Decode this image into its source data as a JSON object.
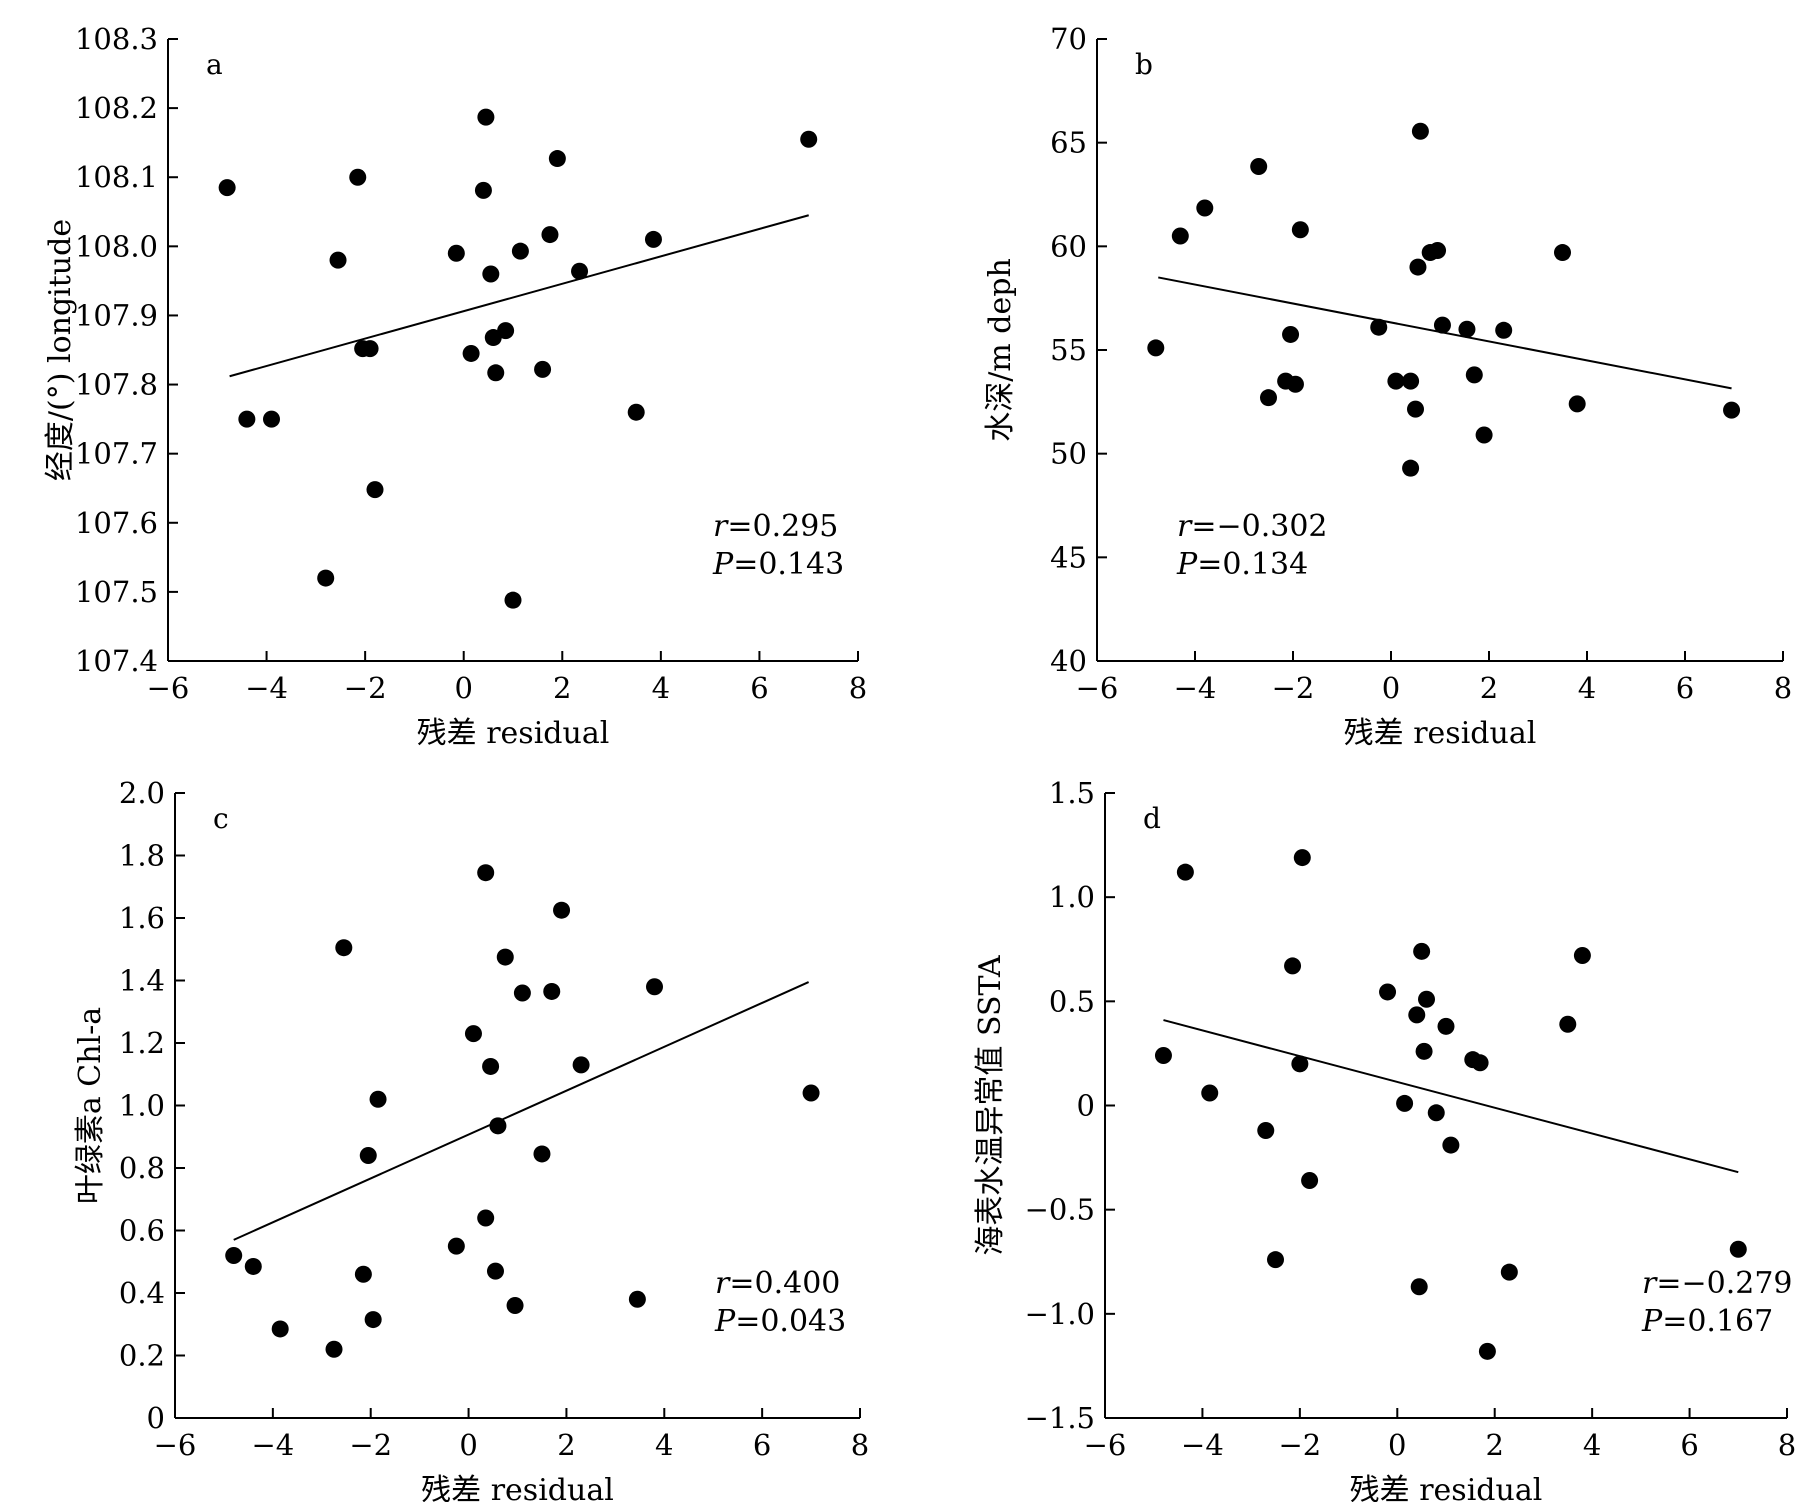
{
  "chart_data": [
    {
      "type": "scatter",
      "panel": "a",
      "xlabel": "残差 residual",
      "ylabel": "经度/(°) longitude",
      "xlim": [
        -6,
        8
      ],
      "ylim": [
        107.4,
        108.3
      ],
      "xticks": [
        -6,
        -4,
        -2,
        0,
        2,
        4,
        6,
        8
      ],
      "xtick_labels": [
        "−6",
        "−4",
        "−2",
        "0",
        "2",
        "4",
        "6",
        "8"
      ],
      "yticks": [
        107.4,
        107.5,
        107.6,
        107.7,
        107.8,
        107.9,
        108.0,
        108.1,
        108.2,
        108.3
      ],
      "ytick_labels": [
        "107.4",
        "107.5",
        "107.6",
        "107.7",
        "107.8",
        "107.9",
        "108.0",
        "108.1",
        "108.2",
        "108.3"
      ],
      "points": {
        "x": [
          -4.8,
          -4.4,
          -3.9,
          -2.8,
          -2.55,
          -2.15,
          -2.05,
          -1.9,
          -1.8,
          -0.15,
          0.15,
          0.4,
          0.45,
          0.55,
          0.6,
          0.65,
          0.85,
          1.0,
          1.15,
          1.6,
          1.75,
          1.9,
          2.35,
          3.5,
          3.85,
          7.0
        ],
        "y": [
          108.085,
          107.75,
          107.75,
          107.52,
          107.98,
          108.1,
          107.852,
          107.852,
          107.648,
          107.99,
          107.845,
          108.081,
          108.187,
          107.96,
          107.868,
          107.817,
          107.878,
          107.488,
          107.993,
          107.822,
          108.017,
          108.127,
          107.964,
          107.76,
          108.01,
          108.155
        ]
      },
      "fit": {
        "x": [
          -4.75,
          7.0
        ],
        "y": [
          107.812,
          108.045
        ]
      },
      "annotation": {
        "r": "=0.295",
        "p": "=0.143",
        "position": "bottom-right"
      }
    },
    {
      "type": "scatter",
      "panel": "b",
      "xlabel": "残差 residual",
      "ylabel": "水深/m deph",
      "xlim": [
        -6,
        8
      ],
      "ylim": [
        40,
        70
      ],
      "xticks": [
        -6,
        -4,
        -2,
        0,
        2,
        4,
        6,
        8
      ],
      "xtick_labels": [
        "−6",
        "−4",
        "−2",
        "0",
        "2",
        "4",
        "6",
        "8"
      ],
      "yticks": [
        40,
        45,
        50,
        55,
        60,
        65,
        70
      ],
      "ytick_labels": [
        "40",
        "45",
        "50",
        "55",
        "60",
        "65",
        "70"
      ],
      "points": {
        "x": [
          -4.8,
          -4.3,
          -3.8,
          -2.7,
          -2.5,
          -2.15,
          -2.05,
          -1.95,
          -1.85,
          -0.25,
          0.1,
          0.4,
          0.4,
          0.5,
          0.55,
          0.6,
          0.8,
          0.95,
          1.05,
          1.55,
          1.7,
          1.9,
          2.3,
          3.5,
          3.8,
          6.95
        ],
        "y": [
          55.1,
          60.5,
          61.85,
          63.85,
          52.7,
          53.5,
          55.75,
          53.35,
          60.8,
          56.1,
          53.5,
          49.3,
          53.5,
          52.15,
          59.0,
          65.55,
          59.7,
          59.8,
          56.2,
          56.0,
          53.8,
          50.9,
          55.95,
          59.7,
          52.4,
          52.1
        ]
      },
      "fit": {
        "x": [
          -4.75,
          6.95
        ],
        "y": [
          58.5,
          53.15
        ]
      },
      "annotation": {
        "r": "=−0.302",
        "p": "=0.134",
        "position": "bottom-left"
      }
    },
    {
      "type": "scatter",
      "panel": "c",
      "xlabel": "残差 residual",
      "ylabel": "叶绿素a Chl-a",
      "xlim": [
        -6,
        8
      ],
      "ylim": [
        0,
        2.0
      ],
      "xticks": [
        -6,
        -4,
        -2,
        0,
        2,
        4,
        6,
        8
      ],
      "xtick_labels": [
        "−6",
        "−4",
        "−2",
        "0",
        "2",
        "4",
        "6",
        "8"
      ],
      "yticks": [
        0,
        0.2,
        0.4,
        0.6,
        0.8,
        1.0,
        1.2,
        1.4,
        1.6,
        1.8,
        2.0
      ],
      "ytick_labels": [
        "0",
        "0.2",
        "0.4",
        "0.6",
        "0.8",
        "1.0",
        "1.2",
        "1.4",
        "1.6",
        "1.8",
        "2.0"
      ],
      "points": {
        "x": [
          -4.8,
          -4.4,
          -3.85,
          -2.75,
          -2.55,
          -2.15,
          -2.05,
          -1.95,
          -1.85,
          -0.25,
          0.1,
          0.35,
          0.35,
          0.45,
          0.55,
          0.6,
          0.75,
          0.95,
          1.1,
          1.5,
          1.7,
          1.9,
          2.3,
          3.45,
          3.8,
          7.0
        ],
        "y": [
          0.52,
          0.485,
          0.285,
          0.22,
          1.505,
          0.46,
          0.84,
          0.315,
          1.02,
          0.55,
          1.23,
          0.64,
          1.745,
          1.125,
          0.47,
          0.935,
          1.475,
          0.36,
          1.36,
          0.845,
          1.365,
          1.625,
          1.13,
          0.38,
          1.38,
          1.04
        ]
      },
      "fit": {
        "x": [
          -4.8,
          6.95
        ],
        "y": [
          0.57,
          1.395
        ]
      },
      "annotation": {
        "r": "=0.400",
        "p": "=0.043",
        "position": "bottom-right"
      }
    },
    {
      "type": "scatter",
      "panel": "d",
      "xlabel": "残差 residual",
      "ylabel": "海表水温异常值 SSTA",
      "xlim": [
        -6,
        8
      ],
      "ylim": [
        -1.5,
        1.5
      ],
      "xticks": [
        -6,
        -4,
        -2,
        0,
        2,
        4,
        6,
        8
      ],
      "xtick_labels": [
        "−6",
        "−4",
        "−2",
        "0",
        "2",
        "4",
        "6",
        "8"
      ],
      "yticks": [
        -1.5,
        -1.0,
        -0.5,
        0,
        0.5,
        1.0,
        1.5
      ],
      "ytick_labels": [
        "−1.5",
        "−1.0",
        "−0.5",
        "0",
        "0.5",
        "1.0",
        "1.5"
      ],
      "points": {
        "x": [
          -4.8,
          -4.35,
          -3.85,
          -2.7,
          -2.5,
          -2.15,
          -2.0,
          -1.95,
          -1.8,
          -0.2,
          0.15,
          0.4,
          0.45,
          0.5,
          0.55,
          0.6,
          0.8,
          1.0,
          1.1,
          1.55,
          1.7,
          1.85,
          2.3,
          3.5,
          3.8,
          7.0
        ],
        "y": [
          0.24,
          1.12,
          0.06,
          -0.12,
          -0.74,
          0.67,
          0.2,
          1.19,
          -0.36,
          0.545,
          0.01,
          0.435,
          -0.87,
          0.74,
          0.26,
          0.51,
          -0.035,
          0.38,
          -0.19,
          0.22,
          0.205,
          -1.18,
          -0.8,
          0.39,
          0.72,
          -0.69
        ]
      },
      "fit": {
        "x": [
          -4.8,
          7.0
        ],
        "y": [
          0.41,
          -0.32
        ]
      },
      "annotation": {
        "r": "=−0.279",
        "p": "=0.167",
        "position": "bottom-right"
      }
    }
  ]
}
